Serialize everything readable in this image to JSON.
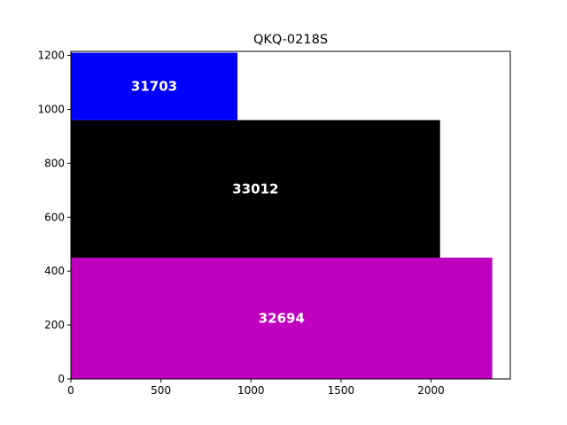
{
  "chart_data": {
    "type": "bar",
    "title": "QKQ-0218S",
    "xlabel": "",
    "ylabel": "",
    "xlim": [
      0,
      2440
    ],
    "ylim": [
      0,
      1215
    ],
    "grid": false,
    "xticks": [
      0,
      500,
      1000,
      1500,
      2000
    ],
    "yticks": [
      0,
      200,
      400,
      600,
      800,
      1000,
      1200
    ],
    "bars": [
      {
        "label": "32694",
        "x": [
          0,
          2340
        ],
        "y": [
          0,
          450
        ],
        "color": "#bf00bf",
        "label_color": "#ffffff"
      },
      {
        "label": "33012",
        "x": [
          0,
          2050
        ],
        "y": [
          450,
          960
        ],
        "color": "#000000",
        "label_color": "#ffffff"
      },
      {
        "label": "31703",
        "x": [
          0,
          925
        ],
        "y": [
          960,
          1210
        ],
        "color": "#0000ff",
        "label_color": "#ffffff"
      }
    ]
  }
}
